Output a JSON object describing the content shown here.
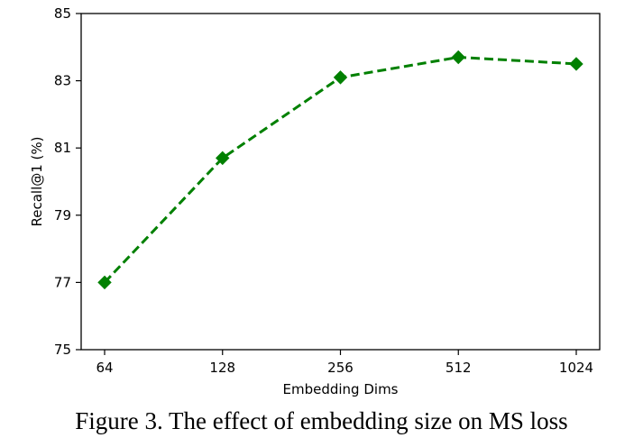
{
  "chart_data": {
    "type": "line",
    "categories": [
      "64",
      "128",
      "256",
      "512",
      "1024"
    ],
    "series": [
      {
        "name": "Recall@1",
        "values": [
          77.0,
          80.7,
          83.1,
          83.7,
          83.5
        ],
        "color": "#008000",
        "line_style": "dashed",
        "marker": "diamond"
      }
    ],
    "xlabel": "Embedding Dims",
    "ylabel": "Recall@1 (%)",
    "ylim": [
      75,
      85
    ],
    "yticks": [
      75,
      77,
      79,
      81,
      83,
      85
    ],
    "grid": false
  },
  "caption": "Figure 3. The effect of embedding size on MS loss"
}
